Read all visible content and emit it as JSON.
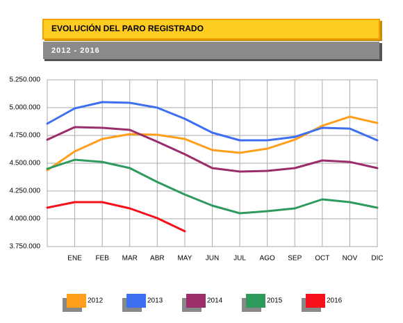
{
  "chart_data": {
    "type": "line",
    "title": "EVOLUCIÓN DEL PARO REGISTRADO",
    "subtitle": "2012 - 2016",
    "categories": [
      null,
      "ENE",
      "FEB",
      "MAR",
      "ABR",
      "MAY",
      "JUN",
      "JUL",
      "AGO",
      "SEP",
      "OCT",
      "NOV",
      "DIC"
    ],
    "series": [
      {
        "name": "2012",
        "color": "#ff9e1b",
        "values": [
          4437000,
          4606000,
          4719000,
          4762000,
          4756000,
          4719000,
          4619000,
          4594000,
          4631000,
          4712000,
          4837000,
          4919000,
          4862000
        ]
      },
      {
        "name": "2013",
        "color": "#3e6ff0",
        "values": [
          4856000,
          4994000,
          5050000,
          5044000,
          5000000,
          4900000,
          4775000,
          4706000,
          4706000,
          4737000,
          4819000,
          4812000,
          4706000
        ]
      },
      {
        "name": "2014",
        "color": "#9b2d6b",
        "values": [
          4712000,
          4825000,
          4819000,
          4800000,
          4694000,
          4581000,
          4456000,
          4425000,
          4431000,
          4456000,
          4525000,
          4512000,
          4456000
        ]
      },
      {
        "name": "2015",
        "color": "#2e9a5e",
        "values": [
          4450000,
          4531000,
          4512000,
          4456000,
          4331000,
          4219000,
          4119000,
          4050000,
          4069000,
          4094000,
          4175000,
          4150000,
          4100000
        ]
      },
      {
        "name": "2016",
        "color": "#f5101b",
        "values": [
          4100000,
          4150000,
          4150000,
          4094000,
          4006000,
          3888000,
          null,
          null,
          null,
          null,
          null,
          null,
          null
        ]
      }
    ],
    "ylim": [
      3750000,
      5250000
    ],
    "yticks": [
      {
        "value": 3750000,
        "label": "3.750.000"
      },
      {
        "value": 4000000,
        "label": "4.000.000"
      },
      {
        "value": 4250000,
        "label": "4.250.000"
      },
      {
        "value": 4500000,
        "label": "4.500.000"
      },
      {
        "value": 4750000,
        "label": "4.750.000"
      },
      {
        "value": 5000000,
        "label": "5.000.000"
      },
      {
        "value": 5250000,
        "label": "5.250.000"
      }
    ],
    "grid": true
  }
}
